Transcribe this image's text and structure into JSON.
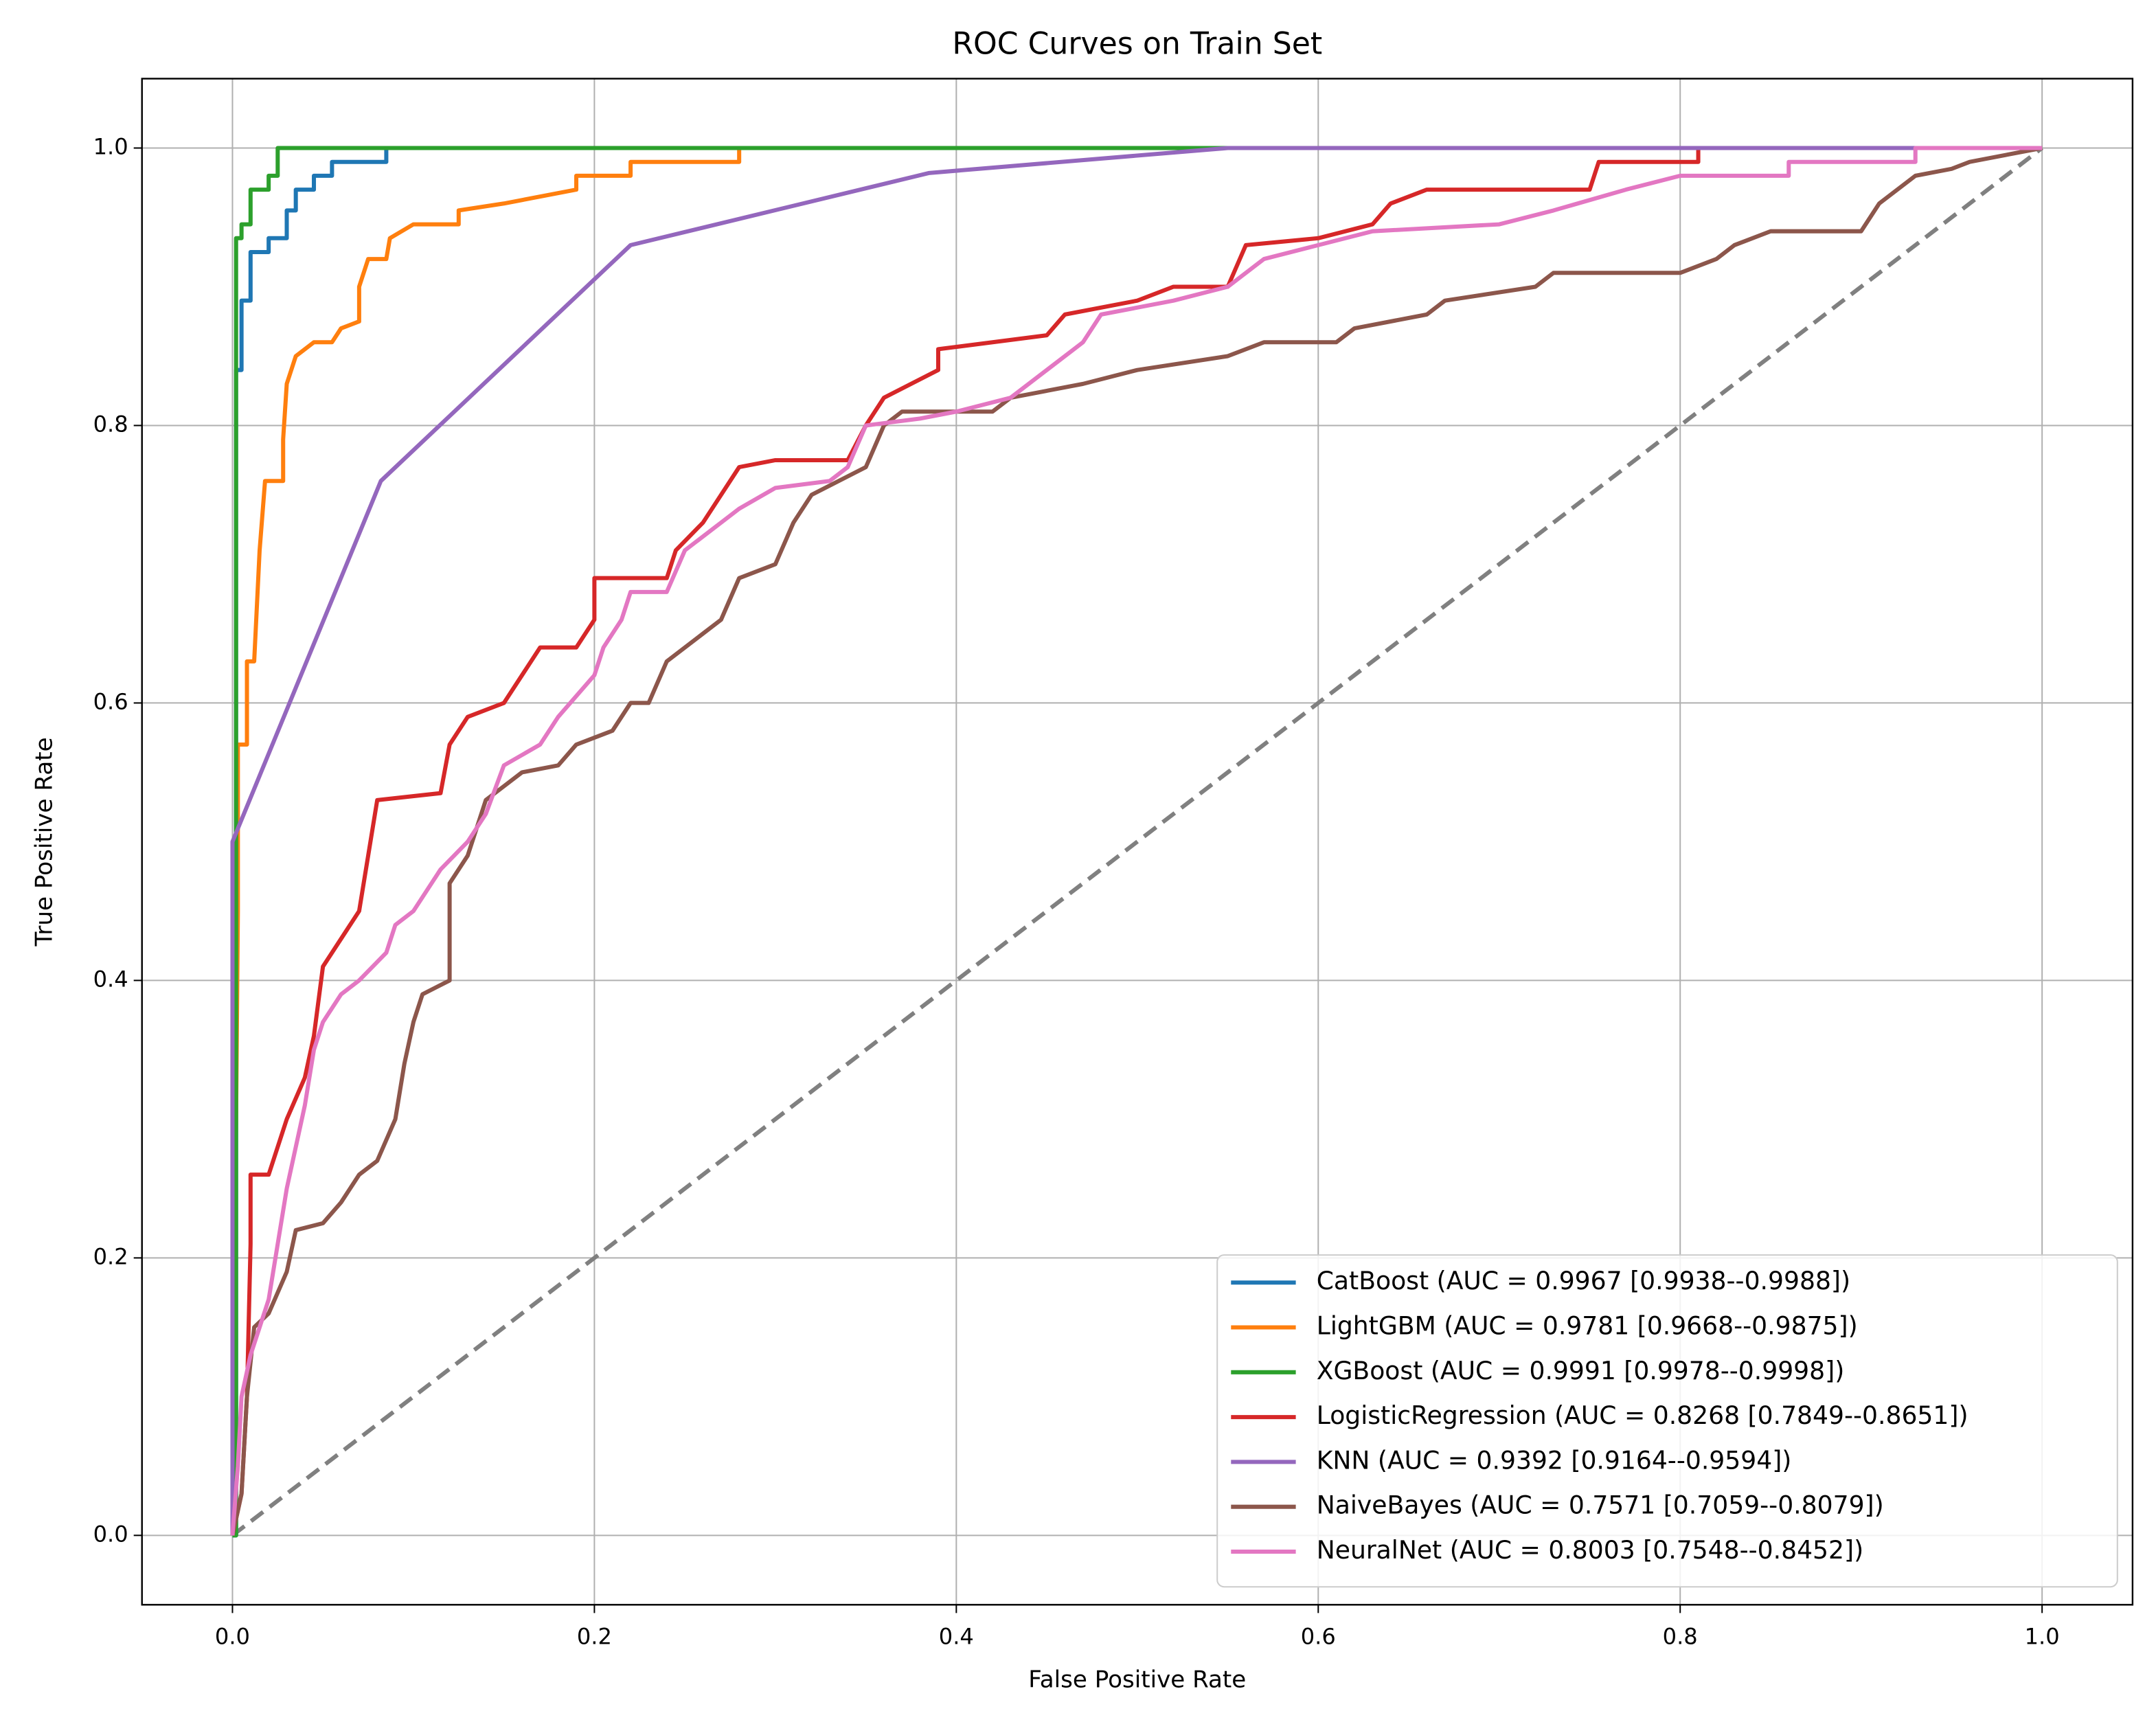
{
  "chart_data": {
    "type": "line",
    "title": "ROC Curves on Train Set",
    "xlabel": "False Positive Rate",
    "ylabel": "True Positive Rate",
    "xlim": [
      -0.05,
      1.05
    ],
    "ylim": [
      -0.05,
      1.05
    ],
    "xticks": [
      {
        "value": 0,
        "label": "0.0"
      },
      0.2,
      0.4,
      0.6,
      0.8,
      {
        "value": 1,
        "label": "1.0"
      }
    ],
    "yticks": [
      {
        "value": 0,
        "label": "0.0"
      },
      0.2,
      0.4,
      0.6,
      0.8,
      {
        "value": 1,
        "label": "1.0"
      }
    ],
    "grid": true,
    "legend": "lower right",
    "reference_line": {
      "x": [
        0,
        1
      ],
      "values": [
        0,
        1
      ],
      "color": "#808080",
      "dash": true
    },
    "series": [
      {
        "name": "CatBoost (AUC = 0.9967 [0.9938--0.9988])",
        "color": "#1f77b4",
        "x": [
          0,
          0.002,
          0.002,
          0.005,
          0.005,
          0.01,
          0.01,
          0.02,
          0.02,
          0.03,
          0.03,
          0.035,
          0.035,
          0.045,
          0.045,
          0.055,
          0.055,
          0.085,
          0.085,
          1
        ],
        "values": [
          0,
          0,
          0.84,
          0.84,
          0.89,
          0.89,
          0.925,
          0.925,
          0.935,
          0.935,
          0.955,
          0.955,
          0.97,
          0.97,
          0.98,
          0.98,
          0.99,
          0.99,
          1,
          1
        ]
      },
      {
        "name": "LightGBM (AUC = 0.9781 [0.9668--0.9875])",
        "color": "#ff7f0e",
        "x": [
          0,
          0.003,
          0.003,
          0.008,
          0.008,
          0.012,
          0.015,
          0.018,
          0.028,
          0.028,
          0.03,
          0.035,
          0.045,
          0.055,
          0.06,
          0.07,
          0.07,
          0.075,
          0.085,
          0.087,
          0.1,
          0.125,
          0.125,
          0.15,
          0.19,
          0.19,
          0.22,
          0.22,
          0.28,
          0.28,
          1
        ],
        "values": [
          0,
          0.45,
          0.57,
          0.57,
          0.63,
          0.63,
          0.71,
          0.76,
          0.76,
          0.79,
          0.83,
          0.85,
          0.86,
          0.86,
          0.87,
          0.875,
          0.9,
          0.92,
          0.92,
          0.935,
          0.945,
          0.945,
          0.955,
          0.96,
          0.97,
          0.98,
          0.98,
          0.99,
          0.99,
          1,
          1
        ]
      },
      {
        "name": "XGBoost (AUC = 0.9991 [0.9978--0.9998])",
        "color": "#2ca02c",
        "x": [
          0,
          0.002,
          0.002,
          0.005,
          0.005,
          0.01,
          0.01,
          0.02,
          0.02,
          0.025,
          0.025,
          1
        ],
        "values": [
          0,
          0,
          0.935,
          0.935,
          0.945,
          0.945,
          0.97,
          0.97,
          0.98,
          0.98,
          1,
          1
        ]
      },
      {
        "name": "LogisticRegression (AUC = 0.8268 [0.7849--0.8651])",
        "color": "#d62728",
        "x": [
          0,
          0.005,
          0.008,
          0.01,
          0.01,
          0.02,
          0.03,
          0.04,
          0.045,
          0.05,
          0.06,
          0.07,
          0.075,
          0.08,
          0.115,
          0.12,
          0.13,
          0.15,
          0.16,
          0.17,
          0.19,
          0.2,
          0.2,
          0.24,
          0.245,
          0.26,
          0.27,
          0.28,
          0.3,
          0.34,
          0.35,
          0.36,
          0.39,
          0.39,
          0.45,
          0.46,
          0.5,
          0.52,
          0.55,
          0.56,
          0.6,
          0.63,
          0.64,
          0.66,
          0.75,
          0.755,
          0.81,
          0.81,
          1
        ],
        "values": [
          0,
          0.03,
          0.1,
          0.21,
          0.26,
          0.26,
          0.3,
          0.33,
          0.36,
          0.41,
          0.43,
          0.45,
          0.49,
          0.53,
          0.535,
          0.57,
          0.59,
          0.6,
          0.62,
          0.64,
          0.64,
          0.66,
          0.69,
          0.69,
          0.71,
          0.73,
          0.75,
          0.77,
          0.775,
          0.775,
          0.8,
          0.82,
          0.84,
          0.855,
          0.865,
          0.88,
          0.89,
          0.9,
          0.9,
          0.93,
          0.935,
          0.945,
          0.96,
          0.97,
          0.97,
          0.99,
          0.99,
          1,
          1
        ]
      },
      {
        "name": "KNN (AUC = 0.9392 [0.9164--0.9594])",
        "color": "#9467bd",
        "x": [
          0,
          0,
          0.082,
          0.22,
          0.385,
          0.55,
          1
        ],
        "values": [
          0,
          0.5,
          0.76,
          0.93,
          0.982,
          1,
          1
        ]
      },
      {
        "name": "NaiveBayes (AUC = 0.7571 [0.7059--0.8079])",
        "color": "#8c564b",
        "x": [
          0,
          0.005,
          0.008,
          0.012,
          0.02,
          0.03,
          0.035,
          0.05,
          0.06,
          0.07,
          0.08,
          0.09,
          0.095,
          0.1,
          0.105,
          0.12,
          0.12,
          0.13,
          0.14,
          0.15,
          0.16,
          0.18,
          0.19,
          0.21,
          0.22,
          0.23,
          0.24,
          0.26,
          0.27,
          0.28,
          0.3,
          0.31,
          0.32,
          0.35,
          0.36,
          0.37,
          0.42,
          0.43,
          0.47,
          0.5,
          0.55,
          0.57,
          0.61,
          0.62,
          0.66,
          0.67,
          0.72,
          0.73,
          0.8,
          0.82,
          0.83,
          0.85,
          0.9,
          0.91,
          0.93,
          0.95,
          0.96,
          1
        ],
        "values": [
          0,
          0.03,
          0.1,
          0.15,
          0.16,
          0.19,
          0.22,
          0.225,
          0.24,
          0.26,
          0.27,
          0.3,
          0.34,
          0.37,
          0.39,
          0.4,
          0.47,
          0.49,
          0.53,
          0.54,
          0.55,
          0.555,
          0.57,
          0.58,
          0.6,
          0.6,
          0.63,
          0.65,
          0.66,
          0.69,
          0.7,
          0.73,
          0.75,
          0.77,
          0.8,
          0.81,
          0.81,
          0.82,
          0.83,
          0.84,
          0.85,
          0.86,
          0.86,
          0.87,
          0.88,
          0.89,
          0.9,
          0.91,
          0.91,
          0.92,
          0.93,
          0.94,
          0.94,
          0.96,
          0.98,
          0.985,
          0.99,
          1
        ]
      },
      {
        "name": "NeuralNet (AUC = 0.8003 [0.7548--0.8452])",
        "color": "#e377c2",
        "x": [
          0,
          0.003,
          0.005,
          0.01,
          0.02,
          0.03,
          0.04,
          0.045,
          0.05,
          0.06,
          0.07,
          0.085,
          0.09,
          0.1,
          0.115,
          0.13,
          0.14,
          0.15,
          0.17,
          0.18,
          0.2,
          0.205,
          0.215,
          0.22,
          0.24,
          0.25,
          0.27,
          0.28,
          0.3,
          0.33,
          0.34,
          0.35,
          0.38,
          0.4,
          0.43,
          0.45,
          0.47,
          0.48,
          0.52,
          0.55,
          0.57,
          0.6,
          0.63,
          0.7,
          0.73,
          0.77,
          0.8,
          0.86,
          0.86,
          0.93,
          0.93,
          1
        ],
        "values": [
          0,
          0.05,
          0.1,
          0.13,
          0.17,
          0.25,
          0.31,
          0.35,
          0.37,
          0.39,
          0.4,
          0.42,
          0.44,
          0.45,
          0.48,
          0.5,
          0.52,
          0.555,
          0.57,
          0.59,
          0.62,
          0.64,
          0.66,
          0.68,
          0.68,
          0.71,
          0.73,
          0.74,
          0.755,
          0.76,
          0.77,
          0.8,
          0.805,
          0.81,
          0.82,
          0.84,
          0.86,
          0.88,
          0.89,
          0.9,
          0.92,
          0.93,
          0.94,
          0.945,
          0.955,
          0.97,
          0.98,
          0.98,
          0.99,
          0.99,
          1,
          1
        ]
      }
    ]
  }
}
